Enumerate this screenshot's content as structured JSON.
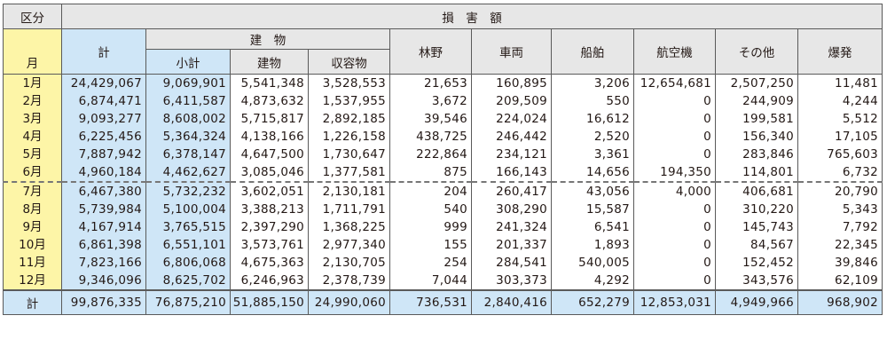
{
  "header": {
    "kubun": "区分",
    "month": "月",
    "loss_title": "損　害　額",
    "total": "計",
    "building_group": "建　物",
    "subtotal": "小計",
    "building": "建物",
    "contents": "収容物",
    "forest": "林野",
    "vehicle": "車両",
    "ship": "船舶",
    "aircraft": "航空機",
    "other": "その他",
    "explosion": "爆発"
  },
  "rows": [
    {
      "month": "1月",
      "total": "24,429,067",
      "subtotal": "9,069,901",
      "building": "5,541,348",
      "contents": "3,528,553",
      "forest": "21,653",
      "vehicle": "160,895",
      "ship": "3,206",
      "aircraft": "12,654,681",
      "other": "2,507,250",
      "explosion": "11,481"
    },
    {
      "month": "2月",
      "total": "6,874,471",
      "subtotal": "6,411,587",
      "building": "4,873,632",
      "contents": "1,537,955",
      "forest": "3,672",
      "vehicle": "209,509",
      "ship": "550",
      "aircraft": "0",
      "other": "244,909",
      "explosion": "4,244"
    },
    {
      "month": "3月",
      "total": "9,093,277",
      "subtotal": "8,608,002",
      "building": "5,715,817",
      "contents": "2,892,185",
      "forest": "39,546",
      "vehicle": "224,024",
      "ship": "16,612",
      "aircraft": "0",
      "other": "199,581",
      "explosion": "5,512"
    },
    {
      "month": "4月",
      "total": "6,225,456",
      "subtotal": "5,364,324",
      "building": "4,138,166",
      "contents": "1,226,158",
      "forest": "438,725",
      "vehicle": "246,442",
      "ship": "2,520",
      "aircraft": "0",
      "other": "156,340",
      "explosion": "17,105"
    },
    {
      "month": "5月",
      "total": "7,887,942",
      "subtotal": "6,378,147",
      "building": "4,647,500",
      "contents": "1,730,647",
      "forest": "222,864",
      "vehicle": "234,121",
      "ship": "3,361",
      "aircraft": "0",
      "other": "283,846",
      "explosion": "765,603"
    },
    {
      "month": "6月",
      "total": "4,960,184",
      "subtotal": "4,462,627",
      "building": "3,085,046",
      "contents": "1,377,581",
      "forest": "875",
      "vehicle": "166,143",
      "ship": "14,656",
      "aircraft": "194,350",
      "other": "114,801",
      "explosion": "6,732"
    },
    {
      "month": "7月",
      "total": "6,467,380",
      "subtotal": "5,732,232",
      "building": "3,602,051",
      "contents": "2,130,181",
      "forest": "204",
      "vehicle": "260,417",
      "ship": "43,056",
      "aircraft": "4,000",
      "other": "406,681",
      "explosion": "20,790"
    },
    {
      "month": "8月",
      "total": "5,739,984",
      "subtotal": "5,100,004",
      "building": "3,388,213",
      "contents": "1,711,791",
      "forest": "540",
      "vehicle": "308,290",
      "ship": "15,587",
      "aircraft": "0",
      "other": "310,220",
      "explosion": "5,343"
    },
    {
      "month": "9月",
      "total": "4,167,914",
      "subtotal": "3,765,515",
      "building": "2,397,290",
      "contents": "1,368,225",
      "forest": "999",
      "vehicle": "241,324",
      "ship": "6,541",
      "aircraft": "0",
      "other": "145,743",
      "explosion": "7,792"
    },
    {
      "month": "10月",
      "total": "6,861,398",
      "subtotal": "6,551,101",
      "building": "3,573,761",
      "contents": "2,977,340",
      "forest": "155",
      "vehicle": "201,337",
      "ship": "1,893",
      "aircraft": "0",
      "other": "84,567",
      "explosion": "22,345"
    },
    {
      "month": "11月",
      "total": "7,823,166",
      "subtotal": "6,806,068",
      "building": "4,675,363",
      "contents": "2,130,705",
      "forest": "254",
      "vehicle": "284,541",
      "ship": "540,005",
      "aircraft": "0",
      "other": "152,452",
      "explosion": "39,846"
    },
    {
      "month": "12月",
      "total": "9,346,096",
      "subtotal": "8,625,702",
      "building": "6,246,963",
      "contents": "2,378,739",
      "forest": "7,044",
      "vehicle": "303,373",
      "ship": "4,292",
      "aircraft": "0",
      "other": "343,576",
      "explosion": "62,109"
    }
  ],
  "totals": {
    "label": "計",
    "total": "99,876,335",
    "subtotal": "76,875,210",
    "building": "51,885,150",
    "contents": "24,990,060",
    "forest": "736,531",
    "vehicle": "2,840,416",
    "ship": "652,279",
    "aircraft": "12,853,031",
    "other": "4,949,966",
    "explosion": "968,902"
  },
  "colors": {
    "header_gray": "#e7e7e7",
    "month_yellow": "#fdf5a7",
    "total_blue": "#cfe6f7"
  }
}
